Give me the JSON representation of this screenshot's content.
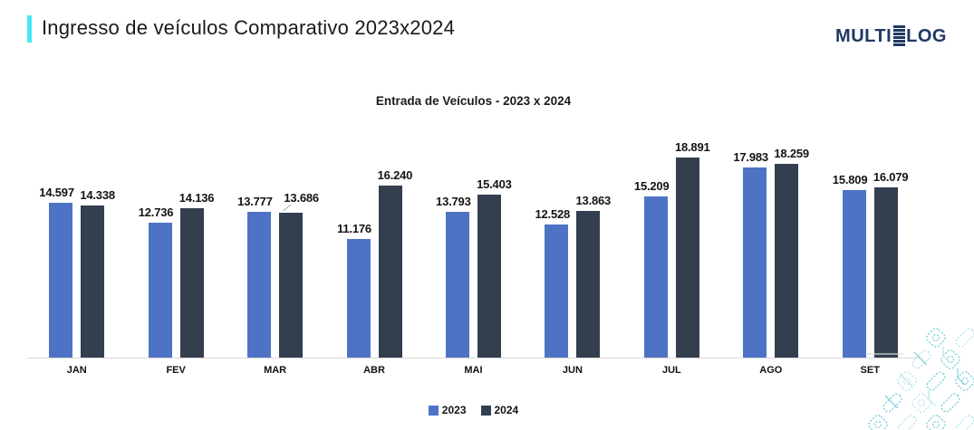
{
  "header": {
    "title": "Ingresso de veículos Comparativo 2023x2024",
    "accent_color": "#45E8F2"
  },
  "logo": {
    "text_left": "MULTI",
    "text_right": "LOG",
    "color": "#1F3864",
    "icon": "stacked-bars-icon"
  },
  "chart_data": {
    "type": "bar",
    "title": "Entrada de Veículos - 2023 x 2024",
    "categories": [
      "JAN",
      "FEV",
      "MAR",
      "ABR",
      "MAI",
      "JUN",
      "JUL",
      "AGO",
      "SET"
    ],
    "series": [
      {
        "name": "2023",
        "color": "#4E73C5",
        "values": [
          14597,
          12736,
          13777,
          11176,
          13793,
          12528,
          15209,
          17983,
          15809
        ],
        "labels": [
          "14.597",
          "12.736",
          "13.777",
          "11.176",
          "13.793",
          "12.528",
          "15.209",
          "17.983",
          "15.809"
        ]
      },
      {
        "name": "2024",
        "color": "#333E4F",
        "values": [
          14338,
          14136,
          13686,
          16240,
          15403,
          13863,
          18891,
          18259,
          16079
        ],
        "labels": [
          "14.338",
          "14.136",
          "13.686",
          "16.240",
          "15.403",
          "13.863",
          "18.891",
          "18.259",
          "16.079"
        ]
      }
    ],
    "ylim": [
      0,
      18891
    ],
    "grid": false,
    "axis_line_color": "#d8d8d8",
    "legend_position": "bottom",
    "value_labels_visible": true,
    "leader_line": {
      "series_index": 1,
      "category_index": 2
    }
  },
  "decor": {
    "pattern_color_strong": "#7ccfdb",
    "pattern_color_light": "#b7e5ea"
  }
}
